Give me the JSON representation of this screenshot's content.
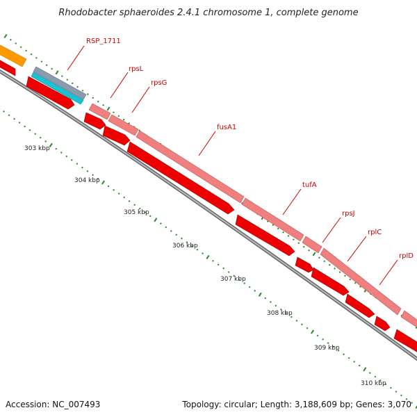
{
  "title": "Rhodobacter sphaeroides 2.4.1 chromosome 1, complete genome",
  "footer": {
    "accession": "Accession: NC_007493",
    "summary": "Topology: circular; Length: 3,188,609 bp; Genes: 3,070"
  },
  "ticks": [
    "303 kbp",
    "304 kbp",
    "305 kbp",
    "306 kbp",
    "307 kbp",
    "308 kbp",
    "309 kbp",
    "310 kbp"
  ],
  "genes": [
    {
      "name": "RSP_1711"
    },
    {
      "name": "rpsL"
    },
    {
      "name": "rpsG"
    },
    {
      "name": "fusA1"
    },
    {
      "name": "tufA"
    },
    {
      "name": "rpsJ"
    },
    {
      "name": "rplC"
    },
    {
      "name": "rplD"
    }
  ],
  "colors": {
    "cds": "#ee0000",
    "rna": "#f08080",
    "orange": "#ff9900",
    "cyan": "#19c3d1",
    "steel": "#8a9bb0",
    "backbone": "#888888",
    "tick": "#228822",
    "label": "#cc0000"
  }
}
